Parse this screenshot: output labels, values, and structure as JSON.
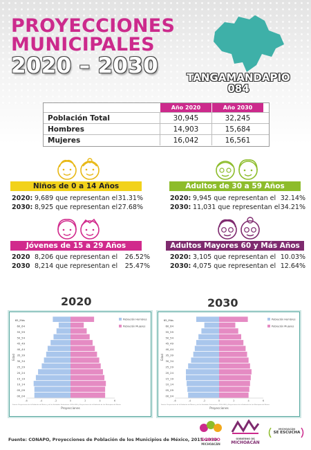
{
  "header": {
    "line1": "PROYECCIONES",
    "line2": "MUNICIPALES",
    "line3": "2020 – 2030"
  },
  "municipality": {
    "name": "TANGAMANDAPIO",
    "code": "084"
  },
  "table": {
    "col_headers": [
      "Año 2020",
      "Año 2030"
    ],
    "rows": [
      {
        "label": "Población Total",
        "v2020": "30,945",
        "v2030": "32,245"
      },
      {
        "label": "Hombres",
        "v2020": "14,903",
        "v2030": "15,684"
      },
      {
        "label": "Mujeres",
        "v2020": "16,042",
        "v2030": "16,561"
      }
    ]
  },
  "groups": {
    "ninos": {
      "title": "Niños de 0 a 14 Años",
      "r1y": "2020:",
      "r1t": "9,689 que representan el",
      "r1p": "31.31%",
      "r2y": "2030:",
      "r2t": "8,925 que representan el",
      "r2p": "27.68%"
    },
    "adultos": {
      "title": "Adultos de 30 a 59 Años",
      "r1y": "2020:",
      "r1t": "9,945 que representan el",
      "r1p": "32.14%",
      "r2y": "2030:",
      "r2t": "11,031 que representan el",
      "r2p": "34.21%"
    },
    "jovenes": {
      "title": "Jóvenes de 15 a 29 Años",
      "r1y": "2020",
      "r1t": "8,206 que representan el",
      "r1p": "26.52%",
      "r2y": "2030",
      "r2t": "8,214 que representan el",
      "r2p": "25.47%"
    },
    "mayores": {
      "title": "Adultos Mayores  60 y Más Años",
      "r1y": "2020:",
      "r1t": "3,105 que representan el",
      "r1p": "10.03%",
      "r2y": "2030:",
      "r2t": "4,075 que representan el",
      "r2p": "12.64%"
    }
  },
  "colors": {
    "magenta": "#cc2a8c",
    "yellow": "#f2d21b",
    "green": "#8dbc2b",
    "purple": "#7e2a6e",
    "men_bar": "#a9c6ec",
    "women_bar": "#e58bc3"
  },
  "chart_data": [
    {
      "type": "bar",
      "title": "2020",
      "categories": [
        "00_04",
        "05_09",
        "10_14",
        "15_19",
        "20_24",
        "25_29",
        "30_34",
        "35_39",
        "40_44",
        "45_49",
        "50_54",
        "55_59",
        "60_64",
        "65_Más"
      ],
      "series": [
        {
          "name": "Población Hombres",
          "values": [
            -4.9,
            -4.9,
            -5.0,
            -4.7,
            -4.4,
            -3.9,
            -3.6,
            -3.3,
            -3.1,
            -2.7,
            -2.3,
            -1.9,
            -1.6,
            -2.4
          ]
        },
        {
          "name": "Población Mujeres",
          "values": [
            4.7,
            4.7,
            4.8,
            4.6,
            4.4,
            4.1,
            3.9,
            3.6,
            3.3,
            3.0,
            2.6,
            2.2,
            1.8,
            3.2
          ]
        }
      ],
      "ylabel": "Edad",
      "xlabel": "Proyecciones",
      "xlim": [
        -6,
        6
      ],
      "note": "Fuente: Proyecciones de la Población de México y de las Entidades Federativas, 2016-2050 y Proyecciones de la Población de los Municipios de México"
    },
    {
      "type": "bar",
      "title": "2030",
      "categories": [
        "00_04",
        "05_09",
        "10_14",
        "15_19",
        "20_24",
        "25_29",
        "30_34",
        "35_39",
        "40_44",
        "45_49",
        "50_54",
        "55_59",
        "60_64",
        "65_Más"
      ],
      "series": [
        {
          "name": "Población Hombres",
          "values": [
            -4.2,
            -4.3,
            -4.4,
            -4.5,
            -4.5,
            -4.2,
            -3.8,
            -3.5,
            -3.3,
            -3.1,
            -2.8,
            -2.4,
            -2.0,
            -3.1
          ]
        },
        {
          "name": "Población Mujeres",
          "values": [
            4.0,
            4.1,
            4.2,
            4.3,
            4.4,
            4.2,
            4.0,
            3.8,
            3.6,
            3.3,
            3.0,
            2.6,
            2.2,
            3.9
          ]
        }
      ],
      "ylabel": "Edad",
      "xlabel": "Proyecciones",
      "xlim": [
        -6,
        6
      ],
      "note": "Fuente: Proyecciones de la Población de México y de las Entidades Federativas, 2016-2050 y Proyecciones de la Población de los Municipios de México"
    }
  ],
  "footer": {
    "source": "Fuente: CONAPO, Proyecciones de Población de los Municipios de México, 2015-2030"
  },
  "logos": {
    "coespo": "COESPO",
    "coespo_sub": "MICHOACÁN",
    "gob_top": "GOBIERNO DE",
    "gob": "MICHOACÁN",
    "ear_top": "MICHOACÁN",
    "ear": "SE ESCUCHA"
  }
}
